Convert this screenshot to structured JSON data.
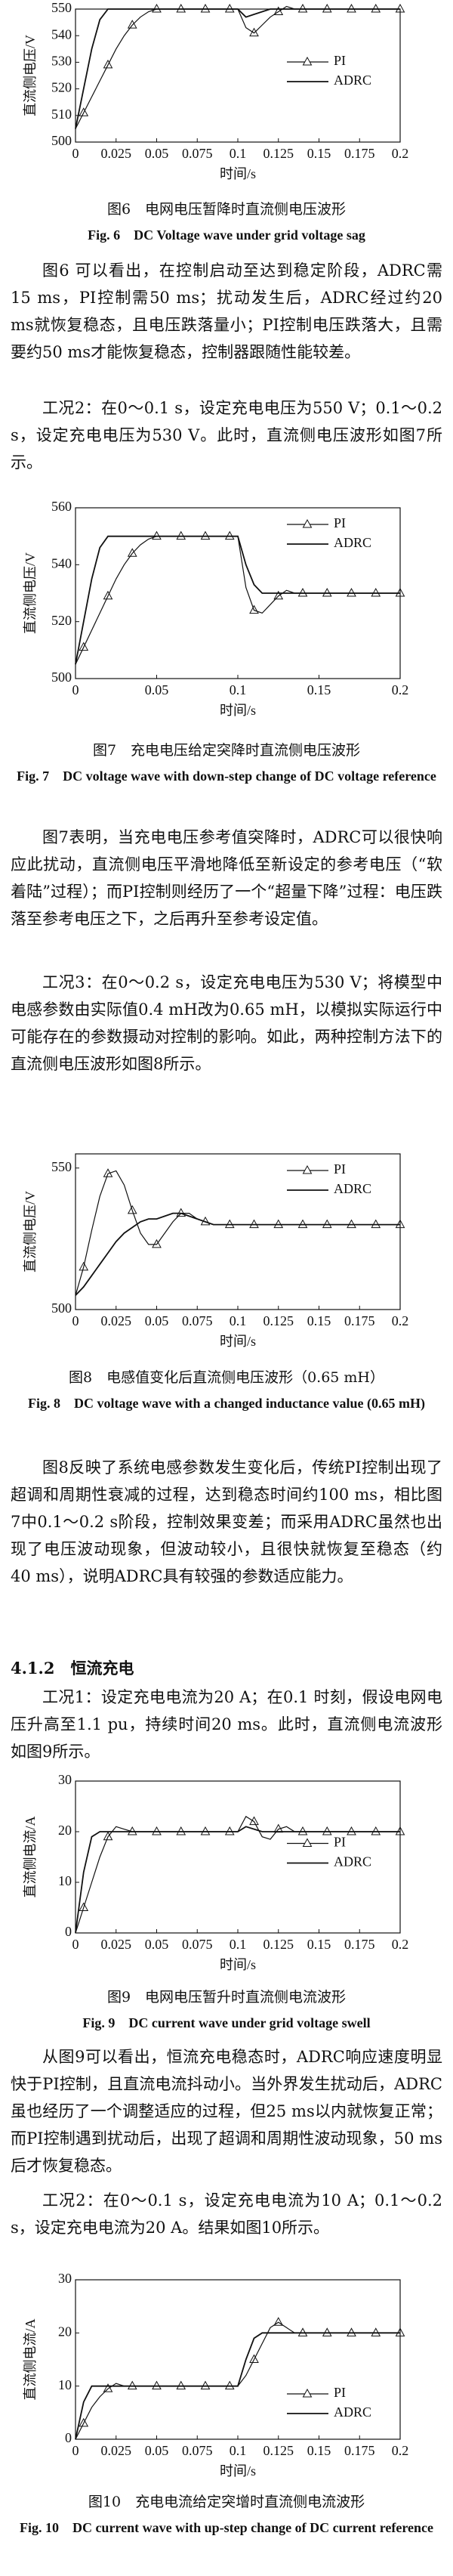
{
  "chart_data": [
    {
      "type": "line",
      "caption": "图6　电网电压暂降时直流侧电压波形",
      "caption_en": "Fig. 6　DC Voltage wave under grid voltage sag",
      "x_label": "时间/s",
      "y_label": "直流侧电压/V",
      "legend": "right",
      "xlim": [
        0,
        0.2
      ],
      "xticks": [
        0,
        0.025,
        0.05,
        0.075,
        0.1,
        0.125,
        0.15,
        0.175,
        0.2
      ],
      "ylim": [
        500,
        550
      ],
      "yticks": [
        500,
        510,
        520,
        530,
        540,
        550
      ],
      "x": [
        0,
        0.005,
        0.01,
        0.015,
        0.02,
        0.025,
        0.03,
        0.035,
        0.04,
        0.045,
        0.05,
        0.055,
        0.06,
        0.065,
        0.07,
        0.075,
        0.08,
        0.085,
        0.09,
        0.095,
        0.1,
        0.105,
        0.11,
        0.115,
        0.12,
        0.125,
        0.13,
        0.135,
        0.14,
        0.145,
        0.15,
        0.155,
        0.16,
        0.165,
        0.17,
        0.175,
        0.18,
        0.185,
        0.19,
        0.195,
        0.2
      ],
      "series": [
        {
          "name": "PI",
          "color": "#111111",
          "values": [
            505,
            511,
            517,
            523,
            529,
            535,
            540,
            544,
            547,
            549,
            550,
            550,
            550,
            550,
            550,
            550,
            550,
            550,
            550,
            550,
            550,
            543,
            541,
            544,
            547,
            549,
            551,
            550,
            550,
            550,
            550,
            550,
            550,
            550,
            550,
            550,
            550,
            550,
            550,
            550,
            550
          ]
        },
        {
          "name": "ADRC",
          "color": "#111111",
          "values": [
            505,
            520,
            535,
            546,
            550,
            550,
            550,
            550,
            550,
            550,
            550,
            550,
            550,
            550,
            550,
            550,
            550,
            550,
            550,
            550,
            550,
            547,
            548,
            549,
            550,
            550,
            550,
            550,
            550,
            550,
            550,
            550,
            550,
            550,
            550,
            550,
            550,
            550,
            550,
            550,
            550
          ]
        }
      ]
    },
    {
      "type": "line",
      "caption": "图7　充电电压给定突降时直流侧电压波形",
      "caption_en": "Fig. 7　DC voltage wave with down-step change of DC voltage reference",
      "x_label": "时间/s",
      "y_label": "直流侧电压/V",
      "legend": "upper right",
      "xlim": [
        0,
        0.2
      ],
      "xticks": [
        0,
        0.05,
        0.1,
        0.15,
        0.2
      ],
      "ylim": [
        500,
        560
      ],
      "yticks": [
        500,
        520,
        540,
        560
      ],
      "x": [
        0,
        0.005,
        0.01,
        0.015,
        0.02,
        0.025,
        0.03,
        0.035,
        0.04,
        0.045,
        0.05,
        0.055,
        0.06,
        0.065,
        0.07,
        0.075,
        0.08,
        0.085,
        0.09,
        0.095,
        0.1,
        0.105,
        0.11,
        0.115,
        0.12,
        0.125,
        0.13,
        0.135,
        0.14,
        0.145,
        0.15,
        0.155,
        0.16,
        0.165,
        0.17,
        0.175,
        0.18,
        0.185,
        0.19,
        0.195,
        0.2
      ],
      "series": [
        {
          "name": "PI",
          "color": "#111111",
          "values": [
            505,
            511,
            517,
            523,
            529,
            535,
            540,
            544,
            547,
            549,
            550,
            550,
            550,
            550,
            550,
            550,
            550,
            550,
            550,
            550,
            550,
            532,
            524,
            523,
            526,
            529,
            531,
            530,
            530,
            530,
            530,
            530,
            530,
            530,
            530,
            530,
            530,
            530,
            530,
            530,
            530
          ]
        },
        {
          "name": "ADRC",
          "color": "#111111",
          "values": [
            505,
            520,
            535,
            546,
            550,
            550,
            550,
            550,
            550,
            550,
            550,
            550,
            550,
            550,
            550,
            550,
            550,
            550,
            550,
            550,
            550,
            540,
            533,
            530,
            530,
            530,
            530,
            530,
            530,
            530,
            530,
            530,
            530,
            530,
            530,
            530,
            530,
            530,
            530,
            530,
            530
          ]
        }
      ]
    },
    {
      "type": "line",
      "caption": "图8　电感值变化后直流侧电压波形（0.65 mH）",
      "caption_en": "Fig. 8　DC voltage wave with a changed inductance value (0.65 mH)",
      "x_label": "时间/s",
      "y_label": "直流侧电压/V",
      "legend": "upper right",
      "xlim": [
        0,
        0.2
      ],
      "xticks": [
        0,
        0.025,
        0.05,
        0.075,
        0.1,
        0.125,
        0.15,
        0.175,
        0.2
      ],
      "ylim": [
        500,
        555
      ],
      "yticks": [
        500,
        550
      ],
      "x": [
        0,
        0.005,
        0.01,
        0.015,
        0.02,
        0.025,
        0.03,
        0.035,
        0.04,
        0.045,
        0.05,
        0.055,
        0.06,
        0.065,
        0.07,
        0.075,
        0.08,
        0.085,
        0.09,
        0.095,
        0.1,
        0.105,
        0.11,
        0.115,
        0.12,
        0.125,
        0.13,
        0.135,
        0.14,
        0.145,
        0.15,
        0.155,
        0.16,
        0.165,
        0.17,
        0.175,
        0.18,
        0.185,
        0.19,
        0.195,
        0.2
      ],
      "series": [
        {
          "name": "PI",
          "color": "#111111",
          "values": [
            505,
            515,
            528,
            540,
            548,
            549,
            544,
            535,
            527,
            523,
            523,
            527,
            531,
            534,
            534,
            532,
            531,
            530,
            530,
            530,
            530,
            530,
            530,
            530,
            530,
            530,
            530,
            530,
            530,
            530,
            530,
            530,
            530,
            530,
            530,
            530,
            530,
            530,
            530,
            530,
            530
          ]
        },
        {
          "name": "ADRC",
          "color": "#111111",
          "values": [
            505,
            508,
            512,
            516,
            520,
            524,
            527,
            529,
            531,
            532,
            532,
            533,
            534,
            534,
            533,
            532,
            531,
            530,
            530,
            530,
            530,
            530,
            530,
            530,
            530,
            530,
            530,
            530,
            530,
            530,
            530,
            530,
            530,
            530,
            530,
            530,
            530,
            530,
            530,
            530,
            530
          ]
        }
      ]
    },
    {
      "type": "line",
      "caption": "图9　电网电压暂升时直流侧电流波形",
      "caption_en": "Fig. 9　DC current wave under grid voltage swell",
      "x_label": "时间/s",
      "y_label": "直流侧电流/A",
      "legend": "right",
      "xlim": [
        0,
        0.2
      ],
      "xticks": [
        0,
        0.025,
        0.05,
        0.075,
        0.1,
        0.125,
        0.15,
        0.175,
        0.2
      ],
      "ylim": [
        0,
        30
      ],
      "yticks": [
        0,
        10,
        20,
        30
      ],
      "x": [
        0,
        0.005,
        0.01,
        0.015,
        0.02,
        0.025,
        0.03,
        0.035,
        0.04,
        0.045,
        0.05,
        0.055,
        0.06,
        0.065,
        0.07,
        0.075,
        0.08,
        0.085,
        0.09,
        0.095,
        0.1,
        0.105,
        0.11,
        0.115,
        0.12,
        0.125,
        0.13,
        0.135,
        0.14,
        0.145,
        0.15,
        0.155,
        0.16,
        0.165,
        0.17,
        0.175,
        0.18,
        0.185,
        0.19,
        0.195,
        0.2
      ],
      "series": [
        {
          "name": "PI",
          "color": "#111111",
          "values": [
            0,
            5,
            10,
            15,
            19,
            21,
            20.5,
            20,
            20,
            20,
            20,
            20,
            20,
            20,
            20,
            20,
            20,
            20,
            20,
            20,
            20,
            23,
            22,
            19,
            18.5,
            20.5,
            21,
            20,
            20,
            20,
            20,
            20,
            20,
            20,
            20,
            20,
            20,
            20,
            20,
            20,
            20
          ]
        },
        {
          "name": "ADRC",
          "color": "#111111",
          "values": [
            0,
            12,
            19,
            20,
            20,
            20,
            20,
            20,
            20,
            20,
            20,
            20,
            20,
            20,
            20,
            20,
            20,
            20,
            20,
            20,
            20,
            21,
            20.5,
            20,
            20,
            20,
            20,
            20,
            20,
            20,
            20,
            20,
            20,
            20,
            20,
            20,
            20,
            20,
            20,
            20,
            20
          ]
        }
      ]
    },
    {
      "type": "line",
      "caption": "图10　充电电流给定突增时直流侧电流波形",
      "caption_en": "Fig. 10　DC current wave with up-step change of DC current reference",
      "x_label": "时间/s",
      "y_label": "直流侧电流/A",
      "legend": "lower right",
      "xlim": [
        0,
        0.2
      ],
      "xticks": [
        0,
        0.025,
        0.05,
        0.075,
        0.1,
        0.125,
        0.15,
        0.175,
        0.2
      ],
      "ylim": [
        0,
        30
      ],
      "yticks": [
        0,
        10,
        20,
        30
      ],
      "x": [
        0,
        0.005,
        0.01,
        0.015,
        0.02,
        0.025,
        0.03,
        0.035,
        0.04,
        0.045,
        0.05,
        0.055,
        0.06,
        0.065,
        0.07,
        0.075,
        0.08,
        0.085,
        0.09,
        0.095,
        0.1,
        0.105,
        0.11,
        0.115,
        0.12,
        0.125,
        0.13,
        0.135,
        0.14,
        0.145,
        0.15,
        0.155,
        0.16,
        0.165,
        0.17,
        0.175,
        0.18,
        0.185,
        0.19,
        0.195,
        0.2
      ],
      "series": [
        {
          "name": "PI",
          "color": "#111111",
          "values": [
            0,
            3,
            6,
            8,
            9.5,
            10.5,
            10,
            10,
            10,
            10,
            10,
            10,
            10,
            10,
            10,
            10,
            10,
            10,
            10,
            10,
            10,
            12,
            15,
            18,
            21,
            22,
            21,
            20,
            20,
            20,
            20,
            20,
            20,
            20,
            20,
            20,
            20,
            20,
            20,
            20,
            20
          ]
        },
        {
          "name": "ADRC",
          "color": "#111111",
          "values": [
            0,
            7,
            10,
            10,
            10,
            10,
            10,
            10,
            10,
            10,
            10,
            10,
            10,
            10,
            10,
            10,
            10,
            10,
            10,
            10,
            10,
            15,
            19,
            20,
            20,
            20,
            20,
            20,
            20,
            20,
            20,
            20,
            20,
            20,
            20,
            20,
            20,
            20,
            20,
            20,
            20
          ]
        }
      ]
    }
  ],
  "document": {
    "paragraphs": [
      "图6 可以看出，在控制启动至达到稳定阶段，ADRC需15 ms，PI控制需50 ms；扰动发生后，ADRC经过约20 ms就恢复稳态，且电压跌落量小；PI控制电压跌落大，且需要约50 ms才能恢复稳态，控制器跟随性能较差。",
      "工况2：在0～0.1 s，设定充电电压为550 V；0.1～0.2 s，设定充电电压为530 V。此时，直流侧电压波形如图7所示。",
      "图7表明，当充电电压参考值突降时，ADRC可以很快响应此扰动，直流侧电压平滑地降低至新设定的参考电压（“软着陆”过程）；而PI控制则经历了一个“超量下降”过程：电压跌落至参考电压之下，之后再升至参考设定值。",
      "工况3：在0～0.2 s，设定充电电压为530 V；将模型中电感参数由实际值0.4 mH改为0.65 mH，以模拟实际运行中可能存在的参数摄动对控制的影响。如此，两种控制方法下的直流侧电压波形如图8所示。",
      "图8反映了系统电感参数发生变化后，传统PI控制出现了超调和周期性衰减的过程，达到稳态时间约100 ms，相比图7中0.1～0.2 s阶段，控制效果变差；而采用ADRC虽然也出现了电压波动现象，但波动较小，且很快就恢复至稳态（约40 ms），说明ADRC具有较强的参数适应能力。",
      "工况1：设定充电电流为20 A；在0.1 时刻，假设电网电压升高至1.1 pu，持续时间20 ms。此时，直流侧电流波形如图9所示。",
      "从图9可以看出，恒流充电稳态时，ADRC响应速度明显快于PI控制，且直流电流抖动小。当外界发生扰动后，ADRC虽也经历了一个调整适应的过程，但25 ms以内就恢复正常；而PI控制遇到扰动后，出现了超调和周期性波动现象，50 ms后才恢复稳态。",
      "工况2：在0～0.1 s，设定充电电流为10 A；0.1～0.2 s，设定充电电流为20 A。结果如图10所示。"
    ],
    "heading": "4.1.2　恒流充电"
  }
}
